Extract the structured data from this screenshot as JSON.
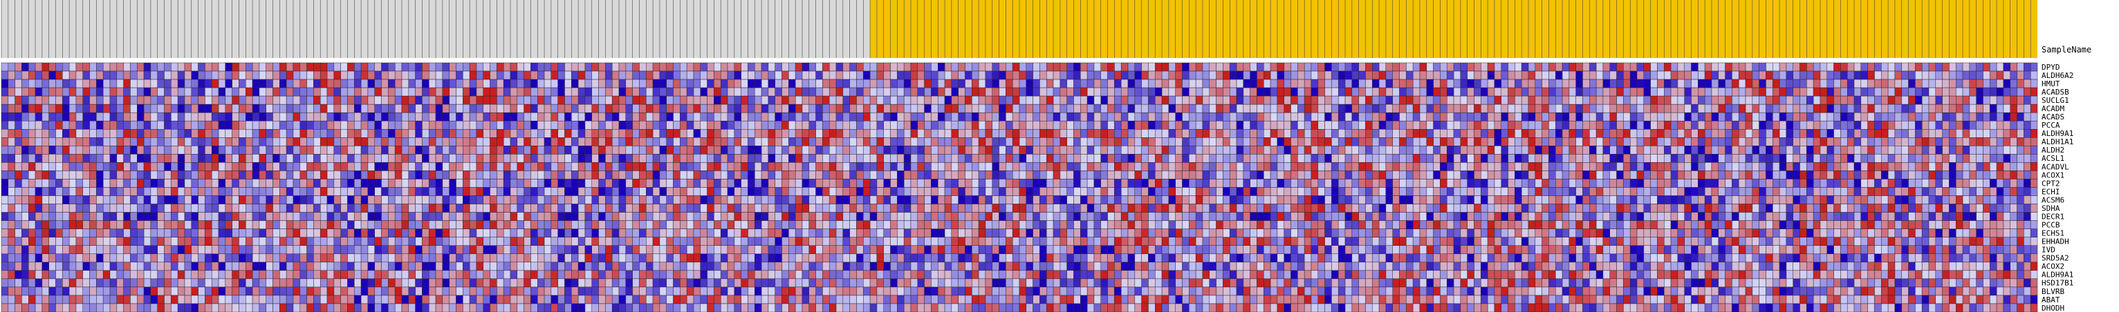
{
  "chart_data": {
    "type": "heatmap",
    "column_axis_label": "SampleName",
    "column_groups": [
      {
        "count": 128,
        "color": "#d9d9d9"
      },
      {
        "count": 172,
        "color": "#f3c200"
      }
    ],
    "rows": [
      "DPYD",
      "ALDH6A2",
      "HMUT",
      "ACADSB",
      "SUCLG1",
      "ACADM",
      "ACADS",
      "PCCA",
      "ALDH9A1",
      "ALDH1A1",
      "ALDH2",
      "ACSL1",
      "ACADVL",
      "ACOX1",
      "CPT2",
      "ECHI",
      "ACSM6",
      "SDHA",
      "DECR1",
      "PCCB",
      "ECHS1",
      "EHHADH",
      "IVD",
      "SRD5A2",
      "ACOX2",
      "ALDH9A1",
      "HSD17B1",
      "BLVRB",
      "ABAT",
      "DHODH"
    ],
    "color_scale": {
      "low": "#1a00b8",
      "mid": "#d8d8f8",
      "high": "#c81e1e"
    },
    "values": "procedural"
  }
}
